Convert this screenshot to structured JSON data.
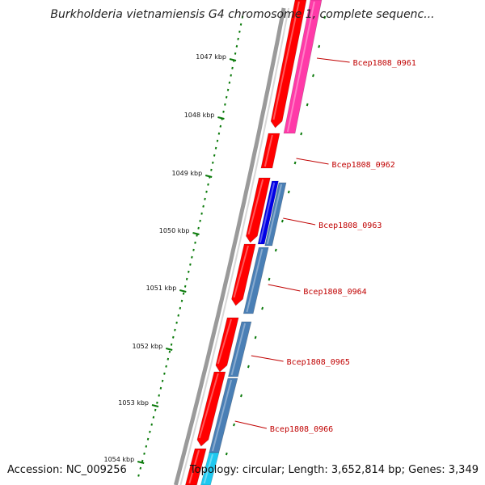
{
  "title": "Burkholderia vietnamiensis G4 chromosome 1, complete sequenc...",
  "accession": "Accession: NC_009256",
  "topology": "Topology: circular; Length: 3,652,814 bp; Genes: 3,349",
  "scale_labels": [
    "1047 kbp",
    "1048 kbp",
    "1049 kbp",
    "1050 kbp",
    "1051 kbp",
    "1052 kbp",
    "1053 kbp",
    "1054 kbp"
  ],
  "gene_labels": [
    "Bcep1808_0961",
    "Bcep1808_0962",
    "Bcep1808_0963",
    "Bcep1808_0964",
    "Bcep1808_0965",
    "Bcep1808_0966"
  ],
  "colors": {
    "backbone": "#888888",
    "gene": "#ff0000",
    "pink_feature": "#ff3aa8",
    "blue_feature": "#0000e6",
    "steelblue_feature": "#4a7fb5",
    "cyan_feature": "#1ec8f0",
    "tick": "#0a7a0a",
    "gene_label": "#c00000"
  }
}
